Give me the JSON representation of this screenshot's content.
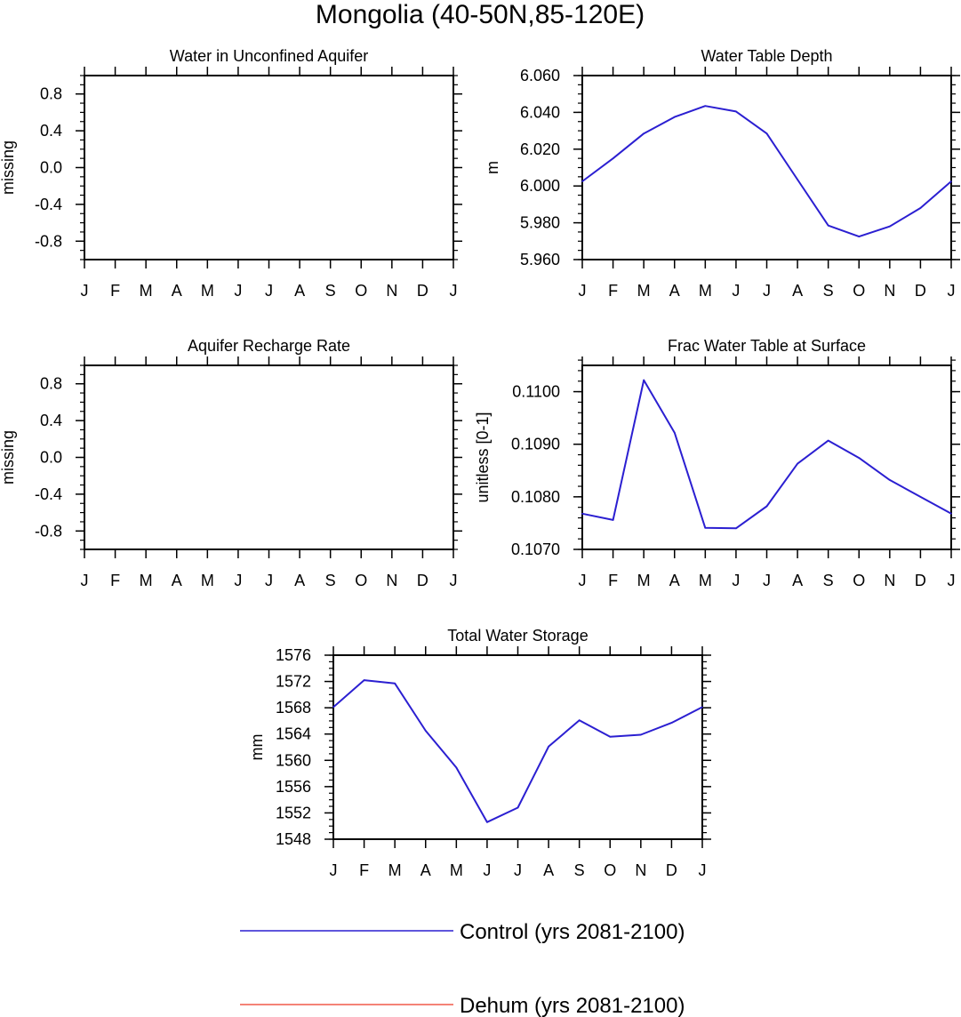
{
  "figure": {
    "title": "Mongolia (40-50N,85-120E)"
  },
  "legend": {
    "entries": [
      {
        "label": "Control (yrs 2081-2100)",
        "color": "#2b1fd1"
      },
      {
        "label": "Dehum (yrs 2081-2100)",
        "color": "#f05a4a"
      }
    ]
  },
  "chart_data": [
    {
      "type": "line",
      "title": "Water in Unconfined Aquifer",
      "ylabel": "missing",
      "xlabel": "",
      "categories": [
        "J",
        "F",
        "M",
        "A",
        "M",
        "J",
        "J",
        "A",
        "S",
        "O",
        "N",
        "D",
        "J"
      ],
      "ylim": [
        -1.0,
        1.0
      ],
      "yticks": [
        -0.8,
        -0.4,
        0.0,
        0.4,
        0.8
      ],
      "ytick_labels": [
        "-0.8",
        "-0.4",
        "0.0",
        "0.4",
        "0.8"
      ],
      "yminor_step": 0.1,
      "series": []
    },
    {
      "type": "line",
      "title": "Water Table Depth",
      "ylabel": "m",
      "xlabel": "",
      "categories": [
        "J",
        "F",
        "M",
        "A",
        "M",
        "J",
        "J",
        "A",
        "S",
        "O",
        "N",
        "D",
        "J"
      ],
      "ylim": [
        5.96,
        6.06
      ],
      "yticks": [
        5.96,
        5.98,
        6.0,
        6.02,
        6.04,
        6.06
      ],
      "ytick_labels": [
        "5.960",
        "5.980",
        "6.000",
        "6.020",
        "6.040",
        "6.060"
      ],
      "yminor_step": 0.005,
      "series": [
        {
          "color": "#2b1fd1",
          "values": [
            6.0025,
            6.015,
            6.0285,
            6.0375,
            6.0435,
            6.0405,
            6.0285,
            6.0035,
            5.9785,
            5.9725,
            5.978,
            5.988,
            6.0025
          ]
        }
      ]
    },
    {
      "type": "line",
      "title": "Aquifer Recharge Rate",
      "ylabel": "missing",
      "xlabel": "",
      "categories": [
        "J",
        "F",
        "M",
        "A",
        "M",
        "J",
        "J",
        "A",
        "S",
        "O",
        "N",
        "D",
        "J"
      ],
      "ylim": [
        -1.0,
        1.0
      ],
      "yticks": [
        -0.8,
        -0.4,
        0.0,
        0.4,
        0.8
      ],
      "ytick_labels": [
        "-0.8",
        "-0.4",
        "0.0",
        "0.4",
        "0.8"
      ],
      "yminor_step": 0.1,
      "series": []
    },
    {
      "type": "line",
      "title": "Frac Water Table at Surface",
      "ylabel": "unitless [0-1]",
      "xlabel": "",
      "categories": [
        "J",
        "F",
        "M",
        "A",
        "M",
        "J",
        "J",
        "A",
        "S",
        "O",
        "N",
        "D",
        "J"
      ],
      "ylim": [
        0.107,
        0.1105
      ],
      "yticks": [
        0.107,
        0.108,
        0.109,
        0.11
      ],
      "ytick_labels": [
        "0.1070",
        "0.1080",
        "0.1090",
        "0.1100"
      ],
      "yminor_step": 0.0002,
      "series": [
        {
          "color": "#2b1fd1",
          "values": [
            0.10768,
            0.10756,
            0.11022,
            0.10922,
            0.10741,
            0.1074,
            0.10782,
            0.10863,
            0.10907,
            0.10874,
            0.10832,
            0.108,
            0.10768
          ]
        }
      ]
    },
    {
      "type": "line",
      "title": "Total Water Storage",
      "ylabel": "mm",
      "xlabel": "",
      "categories": [
        "J",
        "F",
        "M",
        "A",
        "M",
        "J",
        "J",
        "A",
        "S",
        "O",
        "N",
        "D",
        "J"
      ],
      "ylim": [
        1548,
        1576
      ],
      "yticks": [
        1548,
        1552,
        1556,
        1560,
        1564,
        1568,
        1572,
        1576
      ],
      "ytick_labels": [
        "1548",
        "1552",
        "1556",
        "1560",
        "1564",
        "1568",
        "1572",
        "1576"
      ],
      "yminor_step": 1,
      "series": [
        {
          "color": "#2b1fd1",
          "values": [
            1568.1,
            1572.2,
            1571.7,
            1564.5,
            1558.9,
            1550.6,
            1552.8,
            1562.1,
            1566.1,
            1563.6,
            1563.9,
            1565.7,
            1568.1
          ]
        }
      ]
    }
  ]
}
